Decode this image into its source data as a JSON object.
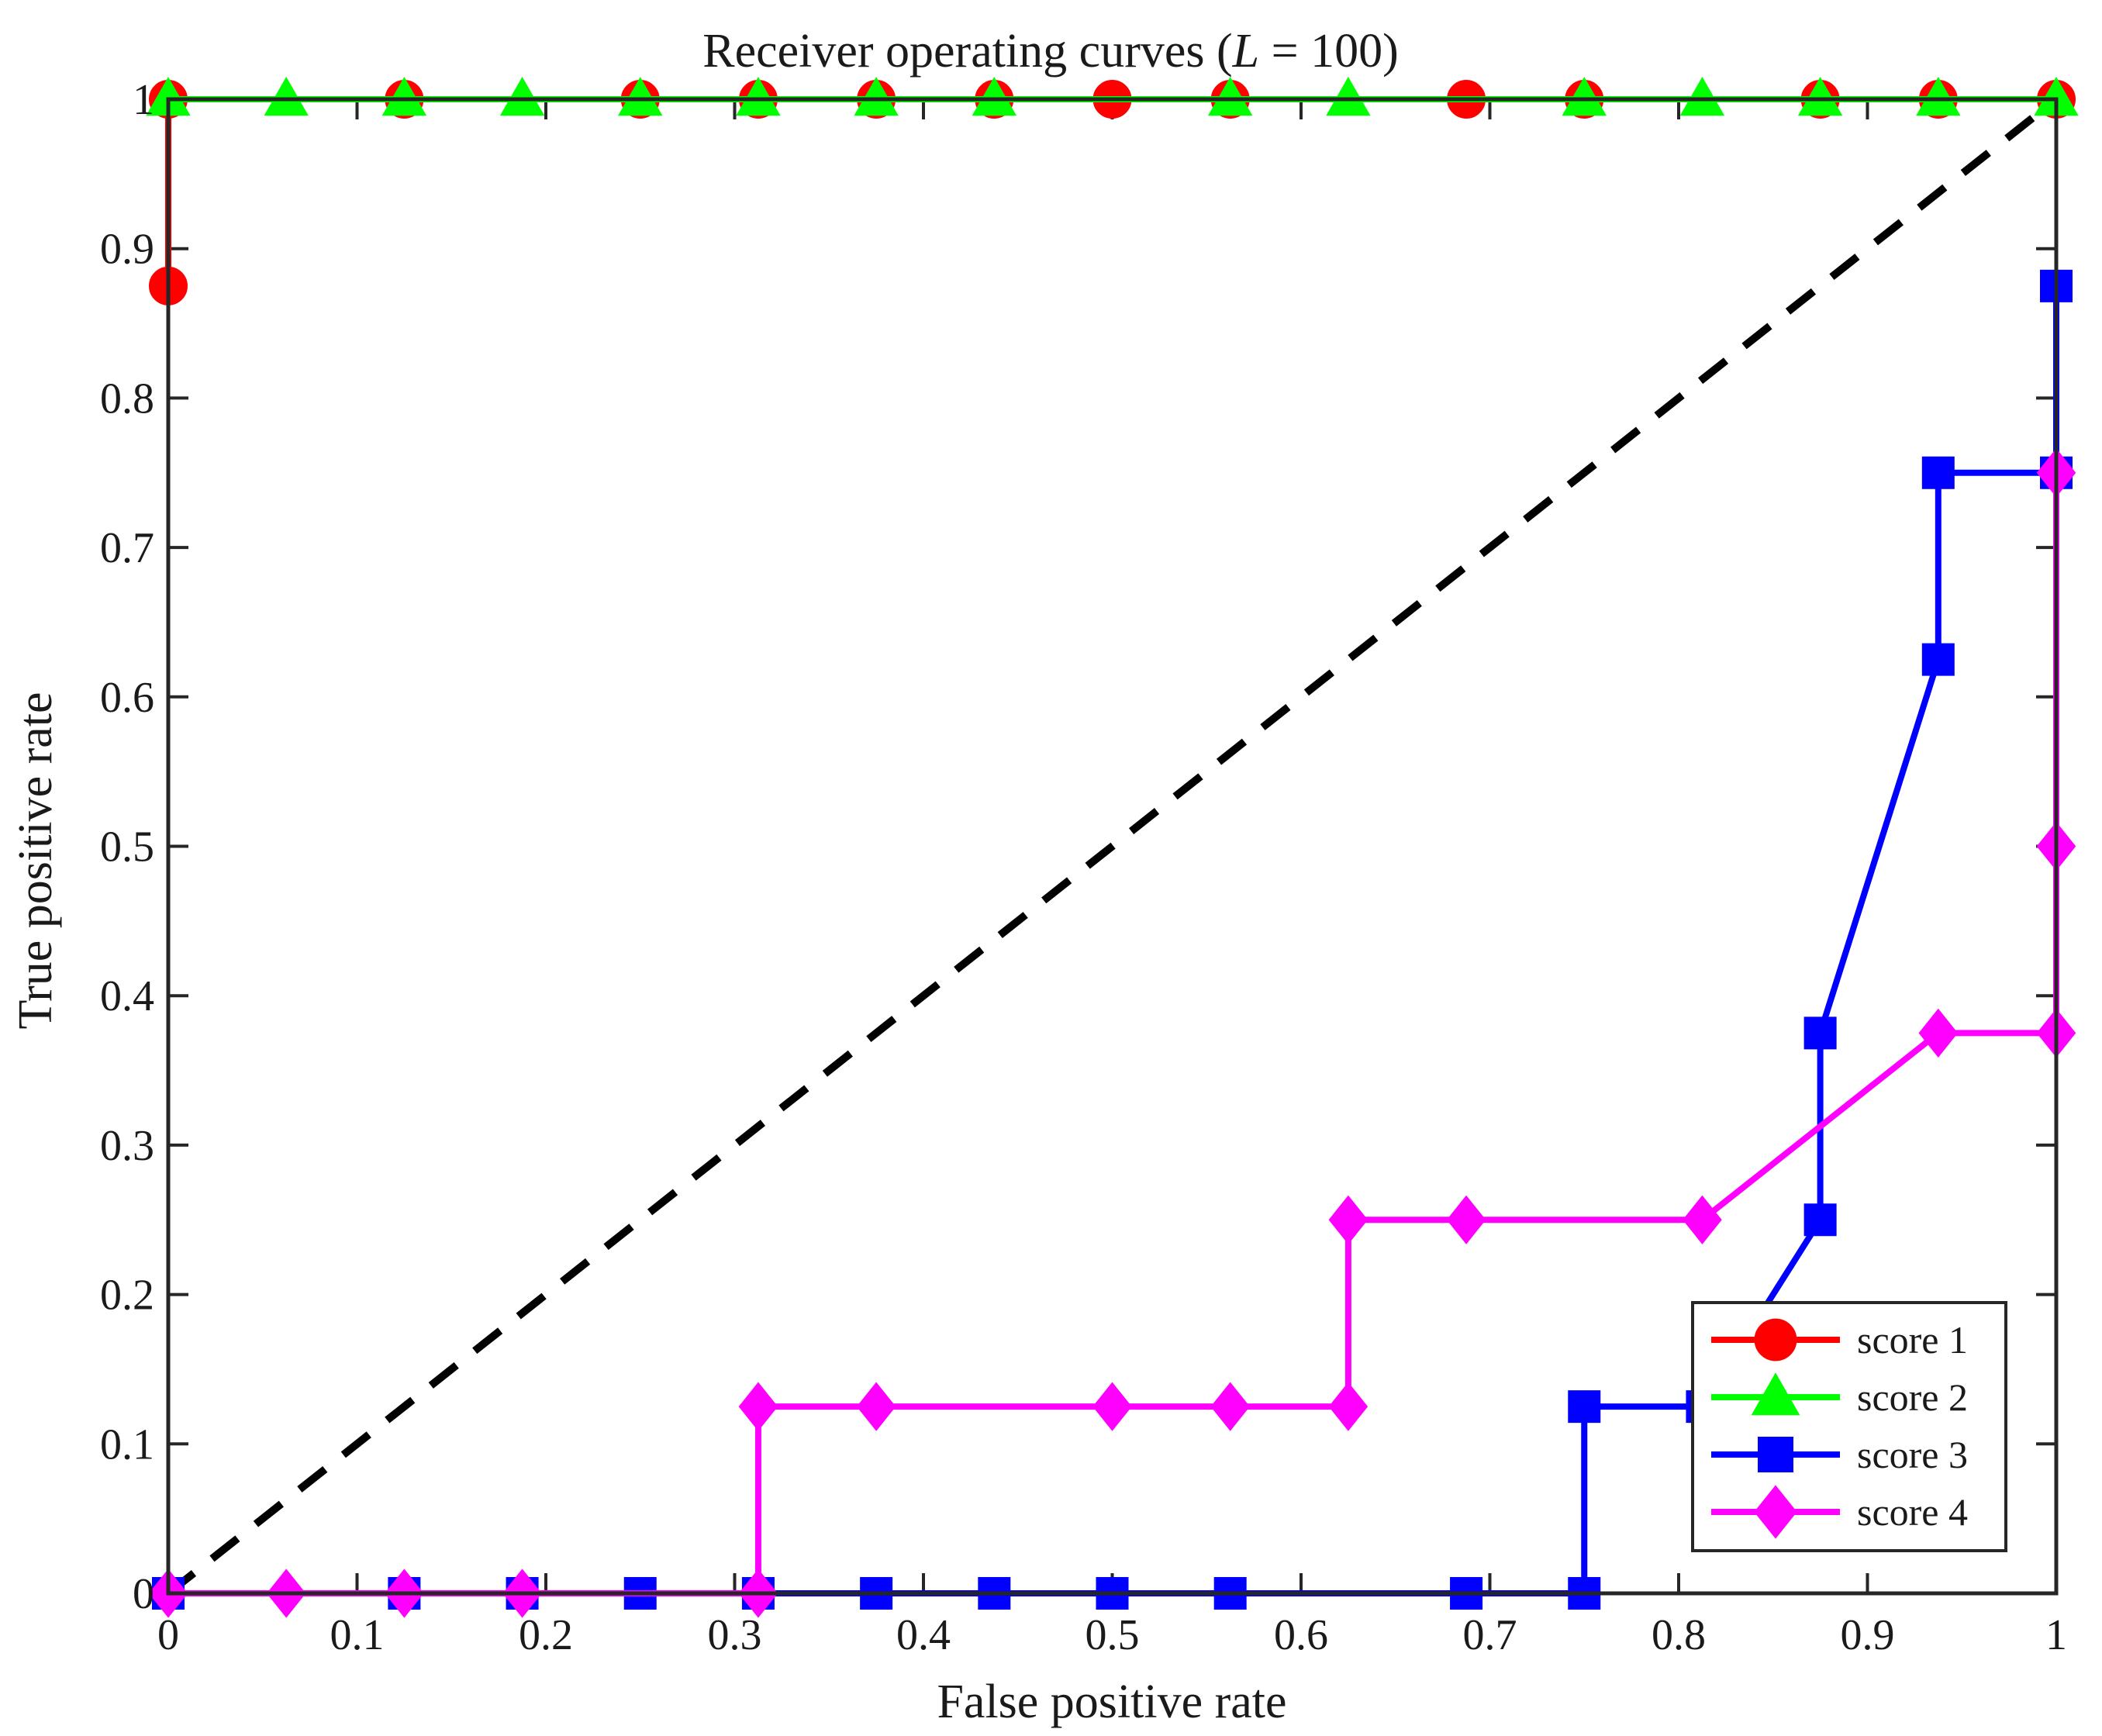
{
  "chart_data": {
    "type": "line",
    "title": "Receiver operating curves (",
    "title_var": "L",
    "title_rest": " = 100)",
    "xlabel": "False positive rate",
    "ylabel": "True positive rate",
    "xlim": [
      0,
      1
    ],
    "ylim": [
      0,
      1
    ],
    "xticks": [
      "0",
      "0.1",
      "0.2",
      "0.3",
      "0.4",
      "0.5",
      "0.6",
      "0.7",
      "0.8",
      "0.9",
      "1"
    ],
    "yticks": [
      "0",
      "0.1",
      "0.2",
      "0.3",
      "0.4",
      "0.5",
      "0.6",
      "0.7",
      "0.8",
      "0.9",
      "1"
    ],
    "grid": false,
    "legend_position": "bottom-right",
    "reference_line": {
      "style": "dashed",
      "color": "#000000",
      "x": [
        0,
        1
      ],
      "y": [
        0,
        1
      ]
    },
    "series": [
      {
        "name": "score 1",
        "color": "#ff0000",
        "marker": "circle",
        "x": [
          0,
          0,
          0.125,
          0.25,
          0.3125,
          0.375,
          0.4375,
          0.5,
          0.5625,
          0.6875,
          0.75,
          0.875,
          0.9375,
          1
        ],
        "y": [
          0.875,
          1,
          1,
          1,
          1,
          1,
          1,
          1,
          1,
          1,
          1,
          1,
          1,
          1
        ]
      },
      {
        "name": "score 2",
        "color": "#00ff00",
        "marker": "triangle",
        "x": [
          0,
          0.0625,
          0.125,
          0.1875,
          0.25,
          0.3125,
          0.375,
          0.4375,
          0.5625,
          0.625,
          0.75,
          0.8125,
          0.875,
          0.9375,
          1
        ],
        "y": [
          1,
          1,
          1,
          1,
          1,
          1,
          1,
          1,
          1,
          1,
          1,
          1,
          1,
          1,
          1
        ]
      },
      {
        "name": "score 3",
        "color": "#0000ff",
        "marker": "square",
        "x": [
          0,
          0.125,
          0.1875,
          0.25,
          0.3125,
          0.375,
          0.4375,
          0.5,
          0.5625,
          0.6875,
          0.75,
          0.75,
          0.8125,
          0.875,
          0.875,
          0.9375,
          0.9375,
          1,
          1
        ],
        "y": [
          0,
          0,
          0,
          0,
          0,
          0,
          0,
          0,
          0,
          0,
          0,
          0.125,
          0.125,
          0.25,
          0.375,
          0.625,
          0.75,
          0.75,
          0.875
        ]
      },
      {
        "name": "score 4",
        "color": "#ff00ff",
        "marker": "diamond",
        "x": [
          0,
          0.0625,
          0.125,
          0.1875,
          0.3125,
          0.3125,
          0.375,
          0.5,
          0.5625,
          0.625,
          0.625,
          0.6875,
          0.8125,
          0.9375,
          1,
          1,
          1
        ],
        "y": [
          0,
          0,
          0,
          0,
          0,
          0.125,
          0.125,
          0.125,
          0.125,
          0.125,
          0.25,
          0.25,
          0.25,
          0.375,
          0.375,
          0.5,
          0.75
        ]
      }
    ]
  }
}
